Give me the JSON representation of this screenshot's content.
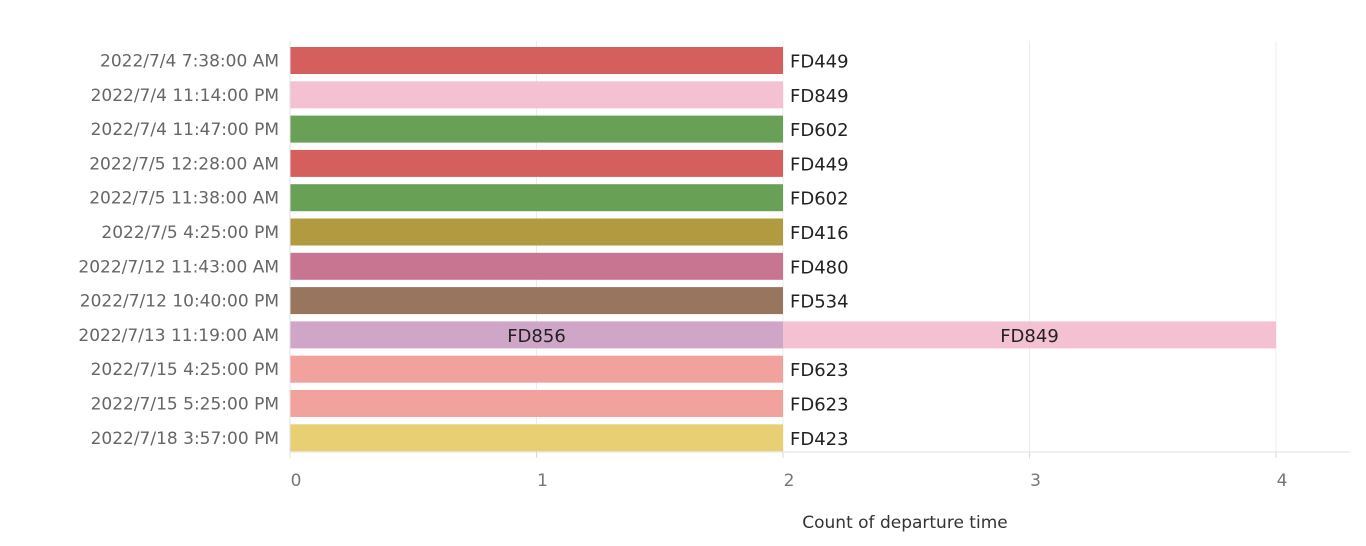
{
  "chart_data": {
    "type": "bar",
    "orientation": "horizontal",
    "stacked": true,
    "xlabel": "Count of departure time",
    "ylabel": "",
    "xlim": [
      0,
      4.3
    ],
    "x_ticks": [
      0,
      1,
      2,
      3,
      4
    ],
    "grid": true,
    "categories": [
      "2022/7/4 7:38:00 AM",
      "2022/7/4 11:14:00 PM",
      "2022/7/4 11:47:00 PM",
      "2022/7/5 12:28:00 AM",
      "2022/7/5 11:38:00 AM",
      "2022/7/5 4:25:00 PM",
      "2022/7/12 11:43:00 AM",
      "2022/7/12 10:40:00 PM",
      "2022/7/13 11:19:00 AM",
      "2022/7/15 4:25:00 PM",
      "2022/7/15 5:25:00 PM",
      "2022/7/18 3:57:00 PM"
    ],
    "bars": [
      {
        "segments": [
          {
            "label": "FD449",
            "value": 2
          }
        ]
      },
      {
        "segments": [
          {
            "label": "FD849",
            "value": 2
          }
        ]
      },
      {
        "segments": [
          {
            "label": "FD602",
            "value": 2
          }
        ]
      },
      {
        "segments": [
          {
            "label": "FD449",
            "value": 2
          }
        ]
      },
      {
        "segments": [
          {
            "label": "FD602",
            "value": 2
          }
        ]
      },
      {
        "segments": [
          {
            "label": "FD416",
            "value": 2
          }
        ]
      },
      {
        "segments": [
          {
            "label": "FD480",
            "value": 2
          }
        ]
      },
      {
        "segments": [
          {
            "label": "FD534",
            "value": 2
          }
        ]
      },
      {
        "segments": [
          {
            "label": "FD856",
            "value": 2
          },
          {
            "label": "FD849",
            "value": 2
          }
        ]
      },
      {
        "segments": [
          {
            "label": "FD623",
            "value": 2
          }
        ]
      },
      {
        "segments": [
          {
            "label": "FD623",
            "value": 2
          }
        ]
      },
      {
        "segments": [
          {
            "label": "FD423",
            "value": 2
          }
        ]
      }
    ],
    "colors": {
      "FD449": "#d45f5c",
      "FD849": "#f3c1d2",
      "FD602": "#68a055",
      "FD416": "#b29a41",
      "FD480": "#c77590",
      "FD534": "#98765e",
      "FD856": "#cfa6c8",
      "FD623": "#f2a29d",
      "FD423": "#e9cf74"
    }
  }
}
